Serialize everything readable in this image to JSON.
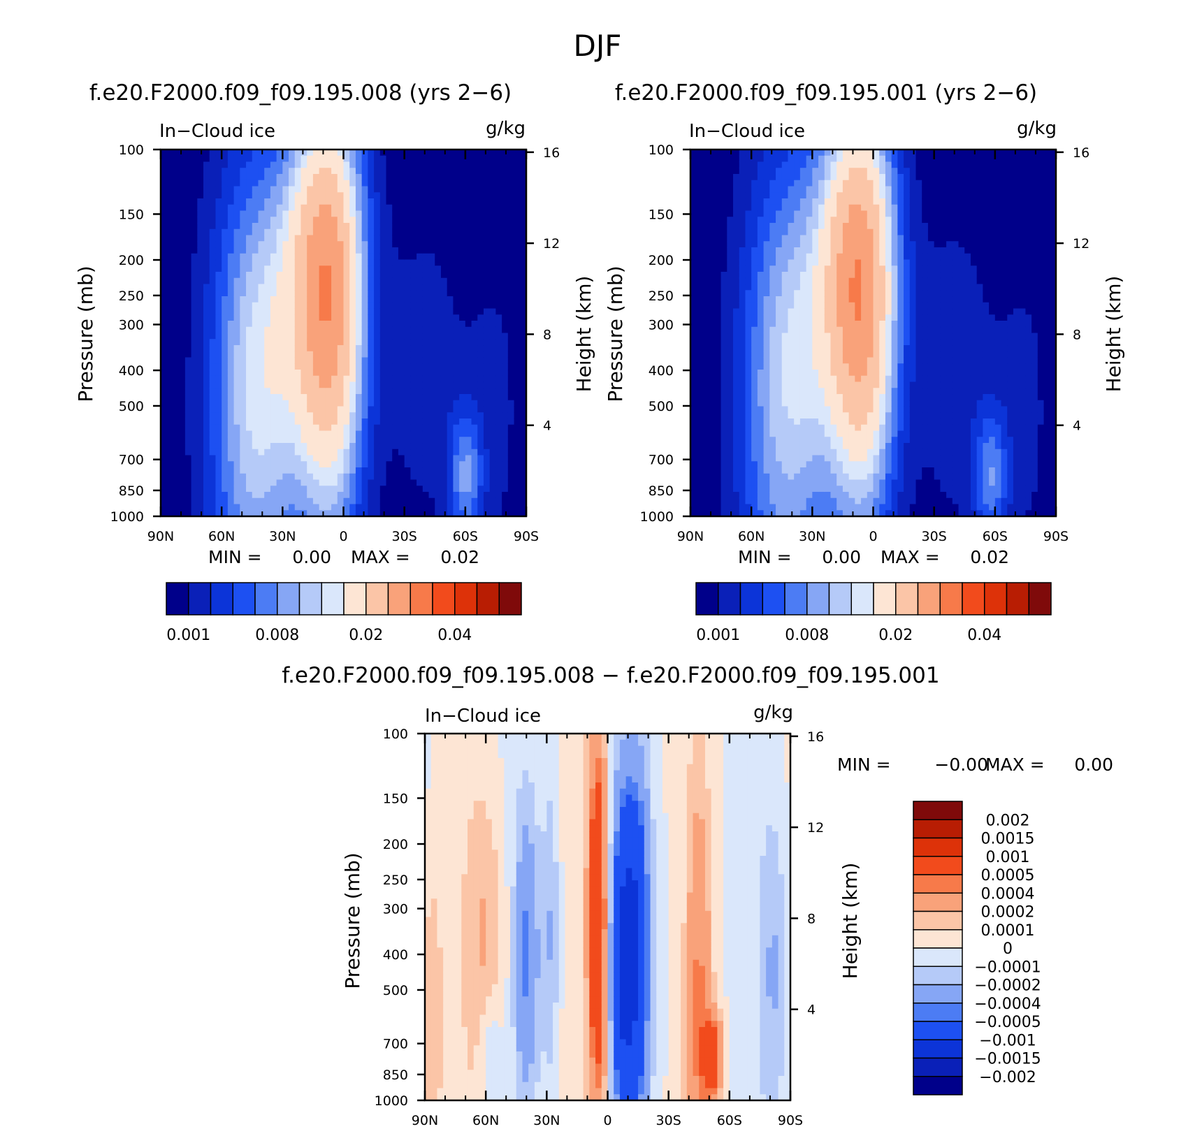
{
  "title": "DJF",
  "chart_data": [
    {
      "type": "heatmap",
      "title": "f.e20.F2000.f09_f09.195.008 (yrs 2−6)",
      "left_label": "In−Cloud ice",
      "right_label": "g/kg",
      "ylabel": "Pressure (mb)",
      "y2label": "Height (km)",
      "x_ticks": [
        "90N",
        "60N",
        "30N",
        "0",
        "30S",
        "60S",
        "90S"
      ],
      "x_values": [
        90,
        60,
        30,
        0,
        -30,
        -60,
        -90
      ],
      "xlim": [
        90,
        -90
      ],
      "y_ticks": [
        100,
        150,
        200,
        250,
        300,
        400,
        500,
        700,
        850,
        1000
      ],
      "ylim": [
        100,
        1000
      ],
      "y_scale": "log",
      "y2_ticks": [
        16,
        12,
        8,
        4
      ],
      "stats": {
        "min_label": "MIN =",
        "min": "0.00",
        "max_label": "MAX =",
        "max": "0.02"
      },
      "colorbar": {
        "orientation": "horizontal",
        "colors": [
          "#00008a",
          "#0a20b8",
          "#0c34d8",
          "#1d50f2",
          "#4c7cf4",
          "#86a6f5",
          "#b5caf8",
          "#dae7fb",
          "#fde5d4",
          "#fbc5a7",
          "#f9a27a",
          "#f77a4a",
          "#f24b1c",
          "#dd3209",
          "#b81d03",
          "#7f0a0a"
        ],
        "tick_labels": [
          "0.001",
          "0.008",
          "0.02",
          "0.04"
        ]
      },
      "blobs": [
        {
          "x": 6,
          "y": 320,
          "sx": 12,
          "sy": 0.42,
          "v": 0.0095
        },
        {
          "x": 11,
          "y": 190,
          "sx": 14,
          "sy": 0.3,
          "v": 0.006
        },
        {
          "x": 45,
          "y": 520,
          "sx": 17,
          "sy": 0.5,
          "v": 0.0055
        },
        {
          "x": 35,
          "y": 330,
          "sx": 15,
          "sy": 0.35,
          "v": 0.0025
        },
        {
          "x": -60,
          "y": 780,
          "sx": 6,
          "sy": 0.13,
          "v": 0.0045
        },
        {
          "x": -40,
          "y": 400,
          "sx": 14,
          "sy": 0.35,
          "v": 0.0015
        },
        {
          "x": -75,
          "y": 520,
          "sx": 12,
          "sy": 0.4,
          "v": 0.0012
        }
      ]
    },
    {
      "type": "heatmap",
      "title": "f.e20.F2000.f09_f09.195.001 (yrs 2−6)",
      "left_label": "In−Cloud ice",
      "right_label": "g/kg",
      "ylabel": "Pressure (mb)",
      "y2label": "Height (km)",
      "x_ticks": [
        "90N",
        "60N",
        "30N",
        "0",
        "30S",
        "60S",
        "90S"
      ],
      "x_values": [
        90,
        60,
        30,
        0,
        -30,
        -60,
        -90
      ],
      "xlim": [
        90,
        -90
      ],
      "y_ticks": [
        100,
        150,
        200,
        250,
        300,
        400,
        500,
        700,
        850,
        1000
      ],
      "ylim": [
        100,
        1000
      ],
      "y_scale": "log",
      "y2_ticks": [
        16,
        12,
        8,
        4
      ],
      "stats": {
        "min_label": "MIN =",
        "min": "0.00",
        "max_label": "MAX =",
        "max": "0.02"
      },
      "colorbar": {
        "orientation": "horizontal",
        "colors": [
          "#00008a",
          "#0a20b8",
          "#0c34d8",
          "#1d50f2",
          "#4c7cf4",
          "#86a6f5",
          "#b5caf8",
          "#dae7fb",
          "#fde5d4",
          "#fbc5a7",
          "#f9a27a",
          "#f77a4a",
          "#f24b1c",
          "#dd3209",
          "#b81d03",
          "#7f0a0a"
        ],
        "tick_labels": [
          "0.001",
          "0.008",
          "0.02",
          "0.04"
        ]
      },
      "blobs": [
        {
          "x": 5,
          "y": 310,
          "sx": 12,
          "sy": 0.42,
          "v": 0.0095
        },
        {
          "x": 10,
          "y": 190,
          "sx": 14,
          "sy": 0.3,
          "v": 0.006
        },
        {
          "x": 45,
          "y": 520,
          "sx": 17,
          "sy": 0.5,
          "v": 0.005
        },
        {
          "x": 35,
          "y": 330,
          "sx": 15,
          "sy": 0.35,
          "v": 0.0025
        },
        {
          "x": -58,
          "y": 780,
          "sx": 6,
          "sy": 0.13,
          "v": 0.0042
        },
        {
          "x": -40,
          "y": 400,
          "sx": 14,
          "sy": 0.35,
          "v": 0.0016
        },
        {
          "x": -75,
          "y": 520,
          "sx": 12,
          "sy": 0.4,
          "v": 0.0012
        }
      ]
    },
    {
      "type": "heatmap",
      "title": "f.e20.F2000.f09_f09.195.008 − f.e20.F2000.f09_f09.195.001",
      "left_label": "In−Cloud ice",
      "right_label": "g/kg",
      "ylabel": "Pressure (mb)",
      "y2label": "Height (km)",
      "x_ticks": [
        "90N",
        "60N",
        "30N",
        "0",
        "30S",
        "60S",
        "90S"
      ],
      "x_values": [
        90,
        60,
        30,
        0,
        -30,
        -60,
        -90
      ],
      "xlim": [
        90,
        -90
      ],
      "y_ticks": [
        100,
        150,
        200,
        250,
        300,
        400,
        500,
        700,
        850,
        1000
      ],
      "ylim": [
        100,
        1000
      ],
      "y_scale": "log",
      "y2_ticks": [
        16,
        12,
        8,
        4
      ],
      "stats": {
        "min_label": "MIN =",
        "min": "−0.00",
        "max_label": "MAX =",
        "max": "0.00"
      },
      "colorbar": {
        "orientation": "vertical",
        "colors": [
          "#00008a",
          "#0a20b8",
          "#0c34d8",
          "#1d50f2",
          "#4c7cf4",
          "#86a6f5",
          "#b5caf8",
          "#dae7fb",
          "#fde5d4",
          "#fbc5a7",
          "#f9a27a",
          "#f77a4a",
          "#f24b1c",
          "#dd3209",
          "#b81d03",
          "#7f0a0a"
        ],
        "tick_labels": [
          "0.002",
          "0.0015",
          "0.001",
          "0.0005",
          "0.0004",
          "0.0002",
          "0.0001",
          "0",
          "−0.0001",
          "−0.0002",
          "−0.0004",
          "−0.0005",
          "−0.001",
          "−0.0015",
          "−0.002"
        ]
      },
      "blobs": [
        {
          "x": 5,
          "y": 330,
          "sx": 3,
          "sy": 0.35,
          "v": 0.0009
        },
        {
          "x": -8,
          "y": 420,
          "sx": 4,
          "sy": 0.3,
          "v": -0.0011
        },
        {
          "x": -15,
          "y": 380,
          "sx": 4,
          "sy": 0.3,
          "v": -0.0008
        },
        {
          "x": -45,
          "y": 580,
          "sx": 4,
          "sy": 0.4,
          "v": 0.0004
        },
        {
          "x": -52,
          "y": 760,
          "sx": 3,
          "sy": 0.08,
          "v": 0.0007
        },
        {
          "x": 40,
          "y": 400,
          "sx": 4,
          "sy": 0.25,
          "v": -0.0004
        },
        {
          "x": 60,
          "y": 400,
          "sx": 7,
          "sy": 0.3,
          "v": 0.0002
        },
        {
          "x": 28,
          "y": 350,
          "sx": 3,
          "sy": 0.3,
          "v": -0.0002
        },
        {
          "x": 58,
          "y": 750,
          "sx": 4,
          "sy": 0.12,
          "v": -0.0002
        },
        {
          "x": -82,
          "y": 450,
          "sx": 5,
          "sy": 0.3,
          "v": -0.0002
        },
        {
          "x": 87,
          "y": 600,
          "sx": 4,
          "sy": 0.3,
          "v": 0.0002
        }
      ]
    }
  ]
}
